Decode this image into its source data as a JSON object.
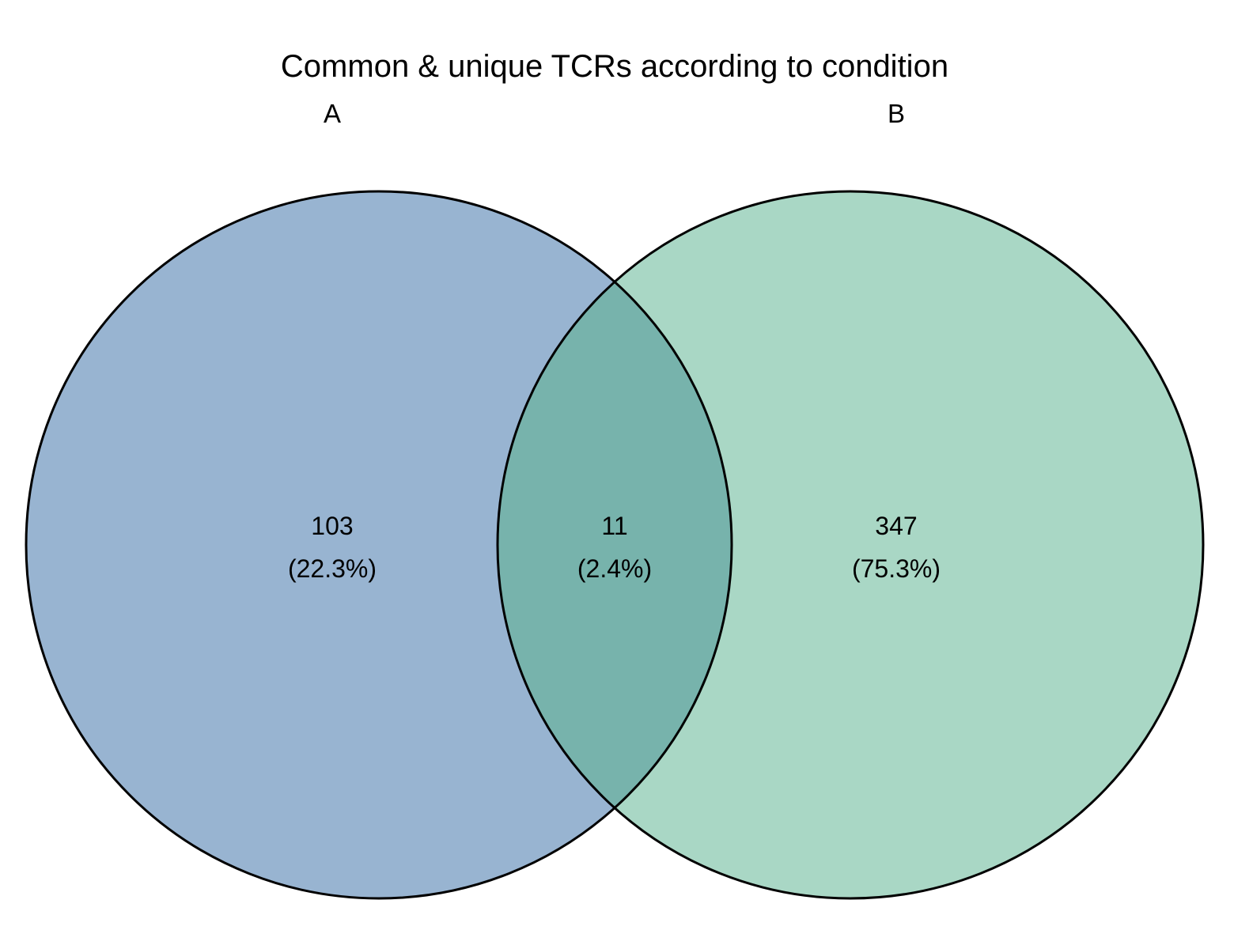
{
  "title": "Common & unique TCRs according to condition",
  "sets": [
    {
      "name": "A",
      "color": "#98B4D1"
    },
    {
      "name": "B",
      "color": "#A9D7C5"
    }
  ],
  "intersection_color": "#77B3AC",
  "outline_color": "#000000",
  "regions": [
    {
      "id": "a-only",
      "count": "103",
      "percent": "(22.3%)"
    },
    {
      "id": "a-and-b",
      "count": "11",
      "percent": "(2.4%)"
    },
    {
      "id": "b-only",
      "count": "347",
      "percent": "(75.3%)"
    }
  ],
  "chart_data": {
    "type": "venn",
    "title": "Common & unique TCRs according to condition",
    "sets": [
      "A",
      "B"
    ],
    "regions": [
      {
        "sets": [
          "A"
        ],
        "value": 103,
        "percent": 22.3
      },
      {
        "sets": [
          "A",
          "B"
        ],
        "value": 11,
        "percent": 2.4
      },
      {
        "sets": [
          "B"
        ],
        "value": 347,
        "percent": 75.3
      }
    ]
  }
}
